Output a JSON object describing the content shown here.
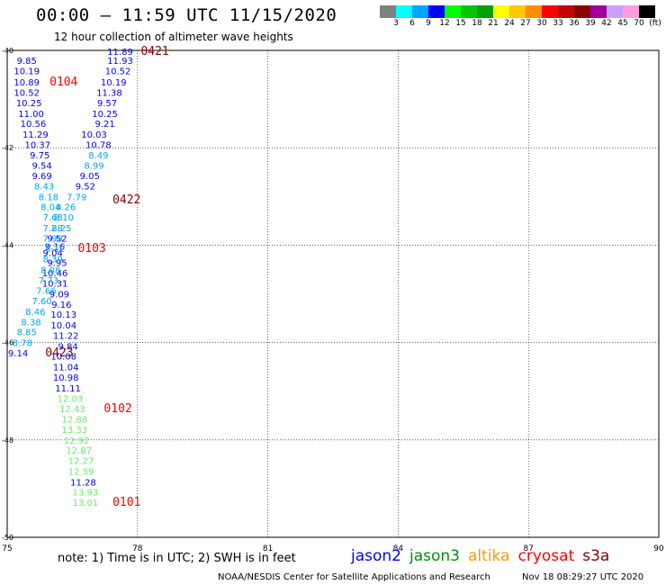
{
  "header": {
    "title": "00:00 – 11:59 UTC 11/15/2020",
    "subtitle": "12 hour collection of altimeter wave heights"
  },
  "colorbar": {
    "colors": [
      "#808080",
      "#00ffff",
      "#00a6ff",
      "#0000ff",
      "#00ff00",
      "#00c800",
      "#00a000",
      "#ffff00",
      "#ffc800",
      "#ff8c00",
      "#ff0000",
      "#c80000",
      "#8c0000",
      "#a000a0",
      "#c8a0ff",
      "#ff9ce0",
      "#000000"
    ],
    "ticks": [
      "3",
      "6",
      "9",
      "12",
      "15",
      "18",
      "21",
      "24",
      "27",
      "30",
      "33",
      "36",
      "39",
      "42",
      "45",
      "70",
      "(ft)"
    ]
  },
  "chart_data": {
    "type": "scatter",
    "xlim": [
      75,
      90
    ],
    "ylim": [
      -50,
      -40
    ],
    "x_ticks": [
      "75",
      "78",
      "81",
      "84",
      "87",
      "90"
    ],
    "y_ticks": [
      "-40",
      "-42",
      "-44",
      "-46",
      "-48",
      "-50"
    ],
    "grid": true,
    "labels": [
      {
        "lon": 77.6,
        "lat": -40.02,
        "text": "11.89",
        "color": "#0000ff"
      },
      {
        "lon": 77.6,
        "lat": -40.2,
        "text": "11.93",
        "color": "#0000ff"
      },
      {
        "lon": 77.55,
        "lat": -40.42,
        "text": "10.52",
        "color": "#0000ff"
      },
      {
        "lon": 77.45,
        "lat": -40.65,
        "text": "10.19",
        "color": "#0000ff"
      },
      {
        "lon": 77.35,
        "lat": -40.86,
        "text": "11.38",
        "color": "#0000ff"
      },
      {
        "lon": 77.3,
        "lat": -41.07,
        "text": "9.57",
        "color": "#0000ff"
      },
      {
        "lon": 77.25,
        "lat": -41.29,
        "text": "10.25",
        "color": "#0000ff"
      },
      {
        "lon": 77.25,
        "lat": -41.5,
        "text": "9.21",
        "color": "#0000ff"
      },
      {
        "lon": 77.0,
        "lat": -41.72,
        "text": "10.03",
        "color": "#0000ff"
      },
      {
        "lon": 77.1,
        "lat": -41.93,
        "text": "10.78",
        "color": "#0000ff"
      },
      {
        "lon": 77.1,
        "lat": -42.14,
        "text": "8.49",
        "color": "#00a6ff"
      },
      {
        "lon": 77.0,
        "lat": -42.36,
        "text": "8.99",
        "color": "#00a6ff"
      },
      {
        "lon": 76.9,
        "lat": -42.57,
        "text": "9.05",
        "color": "#0000ff"
      },
      {
        "lon": 76.8,
        "lat": -42.78,
        "text": "9.52",
        "color": "#0000ff"
      },
      {
        "lon": 76.6,
        "lat": -43.0,
        "text": "7.79",
        "color": "#00a6ff"
      },
      {
        "lon": 76.35,
        "lat": -43.21,
        "text": "8.26",
        "color": "#00a6ff"
      },
      {
        "lon": 76.3,
        "lat": -43.42,
        "text": "8.10",
        "color": "#00a6ff"
      },
      {
        "lon": 76.25,
        "lat": -43.64,
        "text": "8.25",
        "color": "#00a6ff"
      },
      {
        "lon": 76.15,
        "lat": -43.85,
        "text": "9.52",
        "color": "#0000ff"
      },
      {
        "lon": 76.1,
        "lat": -44.02,
        "text": "9.16",
        "color": "#0000ff"
      },
      {
        "lon": 76.05,
        "lat": -44.15,
        "text": "9.04",
        "color": "#0000ff"
      },
      {
        "lon": 76.15,
        "lat": -44.35,
        "text": "9.95",
        "color": "#0000ff"
      },
      {
        "lon": 76.1,
        "lat": -44.57,
        "text": "10.46",
        "color": "#0000ff"
      },
      {
        "lon": 76.1,
        "lat": -44.78,
        "text": "10.31",
        "color": "#0000ff"
      },
      {
        "lon": 76.2,
        "lat": -45.0,
        "text": "9.09",
        "color": "#0000ff"
      },
      {
        "lon": 76.25,
        "lat": -45.21,
        "text": "9.16",
        "color": "#0000ff"
      },
      {
        "lon": 76.3,
        "lat": -45.42,
        "text": "10.13",
        "color": "#0000ff"
      },
      {
        "lon": 76.3,
        "lat": -45.64,
        "text": "10.04",
        "color": "#0000ff"
      },
      {
        "lon": 76.35,
        "lat": -45.85,
        "text": "11.22",
        "color": "#0000ff"
      },
      {
        "lon": 76.4,
        "lat": -46.07,
        "text": "9.84",
        "color": "#0000ff"
      },
      {
        "lon": 76.3,
        "lat": -46.28,
        "text": "10.08",
        "color": "#0000ff"
      },
      {
        "lon": 76.35,
        "lat": -46.5,
        "text": "11.04",
        "color": "#0000ff"
      },
      {
        "lon": 76.35,
        "lat": -46.71,
        "text": "10.98",
        "color": "#0000ff"
      },
      {
        "lon": 76.4,
        "lat": -46.93,
        "text": "11.11",
        "color": "#0000ff"
      },
      {
        "lon": 76.45,
        "lat": -47.14,
        "text": "12.03",
        "color": "#66ee66"
      },
      {
        "lon": 76.5,
        "lat": -47.36,
        "text": "12.43",
        "color": "#66ee66"
      },
      {
        "lon": 76.55,
        "lat": -47.57,
        "text": "12.88",
        "color": "#66ee66"
      },
      {
        "lon": 76.55,
        "lat": -47.78,
        "text": "13.33",
        "color": "#66ee66"
      },
      {
        "lon": 76.6,
        "lat": -48.0,
        "text": "12.92",
        "color": "#66ee66"
      },
      {
        "lon": 76.65,
        "lat": -48.21,
        "text": "12.87",
        "color": "#66ee66"
      },
      {
        "lon": 76.7,
        "lat": -48.42,
        "text": "12.27",
        "color": "#66ee66"
      },
      {
        "lon": 76.7,
        "lat": -48.64,
        "text": "12.59",
        "color": "#66ee66"
      },
      {
        "lon": 76.75,
        "lat": -48.86,
        "text": "11.28",
        "color": "#0000ff"
      },
      {
        "lon": 76.8,
        "lat": -49.07,
        "text": "13.93",
        "color": "#66ee66"
      },
      {
        "lon": 76.8,
        "lat": -49.28,
        "text": "13.01",
        "color": "#66ee66"
      },
      {
        "lon": 75.45,
        "lat": -40.2,
        "text": "9.85",
        "color": "#0000ff"
      },
      {
        "lon": 75.45,
        "lat": -40.42,
        "text": "10.19",
        "color": "#0000ff"
      },
      {
        "lon": 75.45,
        "lat": -40.65,
        "text": "10.89",
        "color": "#0000ff"
      },
      {
        "lon": 75.45,
        "lat": -40.86,
        "text": "10.52",
        "color": "#0000ff"
      },
      {
        "lon": 75.5,
        "lat": -41.07,
        "text": "10.25",
        "color": "#0000ff"
      },
      {
        "lon": 75.55,
        "lat": -41.29,
        "text": "11.00",
        "color": "#0000ff"
      },
      {
        "lon": 75.6,
        "lat": -41.5,
        "text": "10.56",
        "color": "#0000ff"
      },
      {
        "lon": 75.65,
        "lat": -41.72,
        "text": "11.29",
        "color": "#0000ff"
      },
      {
        "lon": 75.7,
        "lat": -41.93,
        "text": "10.37",
        "color": "#0000ff"
      },
      {
        "lon": 75.75,
        "lat": -42.14,
        "text": "9.75",
        "color": "#0000ff"
      },
      {
        "lon": 75.8,
        "lat": -42.36,
        "text": "9.54",
        "color": "#0000ff"
      },
      {
        "lon": 75.8,
        "lat": -42.57,
        "text": "9.69",
        "color": "#0000ff"
      },
      {
        "lon": 75.85,
        "lat": -42.78,
        "text": "8.43",
        "color": "#00a6ff"
      },
      {
        "lon": 75.95,
        "lat": -43.0,
        "text": "8.18",
        "color": "#00a6ff"
      },
      {
        "lon": 76.0,
        "lat": -43.21,
        "text": "8.04",
        "color": "#00a6ff"
      },
      {
        "lon": 76.05,
        "lat": -43.42,
        "text": "7.68",
        "color": "#00a6ff"
      },
      {
        "lon": 76.05,
        "lat": -43.64,
        "text": "7.28",
        "color": "#00a6ff"
      },
      {
        "lon": 76.05,
        "lat": -43.85,
        "text": "7.98",
        "color": "#00a6ff"
      },
      {
        "lon": 76.1,
        "lat": -44.07,
        "text": "8.12",
        "color": "#00a6ff"
      },
      {
        "lon": 76.05,
        "lat": -44.28,
        "text": "8.39",
        "color": "#00a6ff"
      },
      {
        "lon": 76.0,
        "lat": -44.5,
        "text": "8.08",
        "color": "#00a6ff"
      },
      {
        "lon": 75.95,
        "lat": -44.71,
        "text": "7.73",
        "color": "#00a6ff"
      },
      {
        "lon": 75.9,
        "lat": -44.93,
        "text": "7.66",
        "color": "#00a6ff"
      },
      {
        "lon": 75.8,
        "lat": -45.14,
        "text": "7.60",
        "color": "#00a6ff"
      },
      {
        "lon": 75.65,
        "lat": -45.36,
        "text": "8.46",
        "color": "#00a6ff"
      },
      {
        "lon": 75.55,
        "lat": -45.57,
        "text": "8.38",
        "color": "#00a6ff"
      },
      {
        "lon": 75.45,
        "lat": -45.78,
        "text": "8.85",
        "color": "#00a6ff"
      },
      {
        "lon": 75.35,
        "lat": -46.0,
        "text": "8.78",
        "color": "#00a6ff"
      },
      {
        "lon": 75.25,
        "lat": -46.21,
        "text": "9.14",
        "color": "#0000ff"
      },
      {
        "lon": 78.4,
        "lat": -40.02,
        "text": "0421",
        "color": "#8c0000",
        "big": true
      },
      {
        "lon": 76.3,
        "lat": -40.65,
        "text": "0104",
        "color": "#ff0000",
        "big": true
      },
      {
        "lon": 77.75,
        "lat": -43.07,
        "text": "0422",
        "color": "#8c0000",
        "big": true
      },
      {
        "lon": 76.95,
        "lat": -44.07,
        "text": "0103",
        "color": "#ff0000",
        "big": true
      },
      {
        "lon": 76.2,
        "lat": -46.21,
        "text": "0423",
        "color": "#8c0000",
        "big": true
      },
      {
        "lon": 77.55,
        "lat": -47.36,
        "text": "0102",
        "color": "#ff0000",
        "big": true
      },
      {
        "lon": 77.75,
        "lat": -49.28,
        "text": "0101",
        "color": "#ff0000",
        "big": true
      }
    ]
  },
  "note": "note: 1) Time is in UTC; 2) SWH is in feet",
  "satellites": [
    {
      "name": "jason2",
      "color": "#0000ff"
    },
    {
      "name": "jason3",
      "color": "#009000"
    },
    {
      "name": "altika",
      "color": "#ff9900"
    },
    {
      "name": "cryosat",
      "color": "#ff0000"
    },
    {
      "name": "s3a",
      "color": "#8c0000"
    }
  ],
  "footer": {
    "credit": "NOAA/NESDIS Center for Satellite Applications and Research",
    "timestamp": "Nov 18 08:29:27 UTC 2020"
  }
}
